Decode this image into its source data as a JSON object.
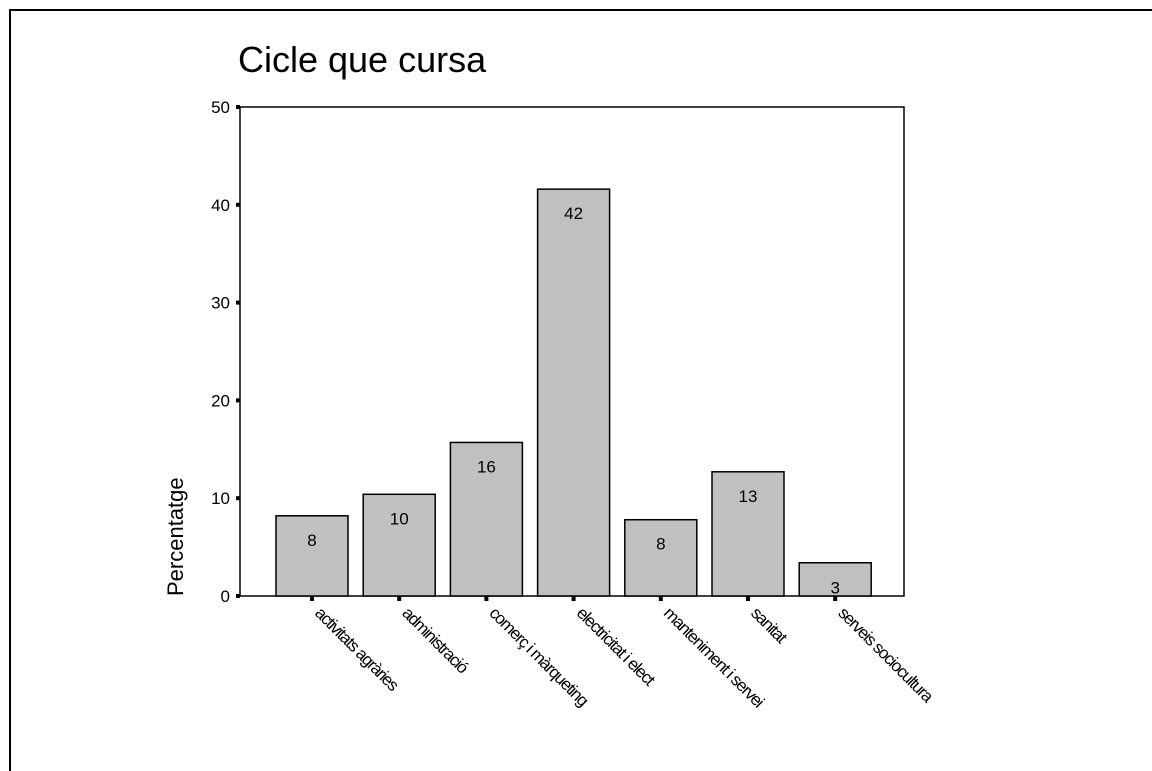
{
  "chart_data": {
    "type": "bar",
    "title": "Cicle que cursa",
    "ylabel": "Percentatge",
    "xlabel": "",
    "ylim": [
      0,
      50
    ],
    "yticks": [
      0,
      10,
      20,
      30,
      40,
      50
    ],
    "categories": [
      "activitats agràries",
      "administració",
      "comerç i màrqueting",
      "electricitat i elect",
      "manteniment i servei",
      "sanitat",
      "serveis sociocultura"
    ],
    "values": [
      8.2,
      10.4,
      15.7,
      41.6,
      7.8,
      12.7,
      3.4
    ],
    "data_labels": [
      "8",
      "10",
      "16",
      "42",
      "8",
      "13",
      "3"
    ],
    "bar_color": "#c0c0c0",
    "grid": false,
    "legend": "none"
  }
}
